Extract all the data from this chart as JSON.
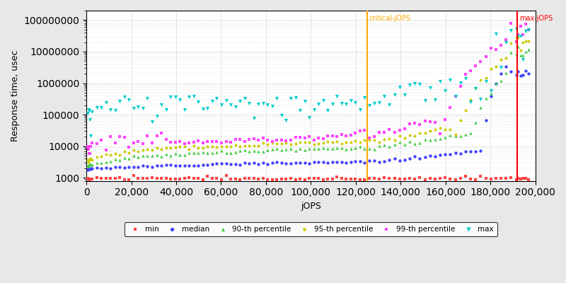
{
  "xlabel": "jOPS",
  "ylabel": "Response time, usec",
  "xlim": [
    0,
    200000
  ],
  "ylim_log": [
    800,
    200000000
  ],
  "critical_jops": 125000,
  "max_jops": 192000,
  "critical_label": "critical-jOPS",
  "max_label": "max-jOPS",
  "critical_color": "#ffaa00",
  "max_color": "#ff0000",
  "background_color": "#e8e8e8",
  "plot_bg_color": "#ffffff",
  "grid_color": "#cccccc",
  "series": {
    "min": {
      "color": "#ff4444",
      "marker": "s",
      "markersize": 3,
      "label": "min"
    },
    "median": {
      "color": "#4444ff",
      "marker": "o",
      "markersize": 4,
      "label": "median"
    },
    "p90": {
      "color": "#44cc44",
      "marker": "^",
      "markersize": 4,
      "label": "90-th percentile"
    },
    "p95": {
      "color": "#cccc00",
      "marker": "o",
      "markersize": 3,
      "label": "95-th percentile"
    },
    "p99": {
      "color": "#ff44ff",
      "marker": "s",
      "markersize": 3,
      "label": "99-th percentile"
    },
    "max": {
      "color": "#00cccc",
      "marker": "v",
      "markersize": 5,
      "label": "max"
    }
  }
}
